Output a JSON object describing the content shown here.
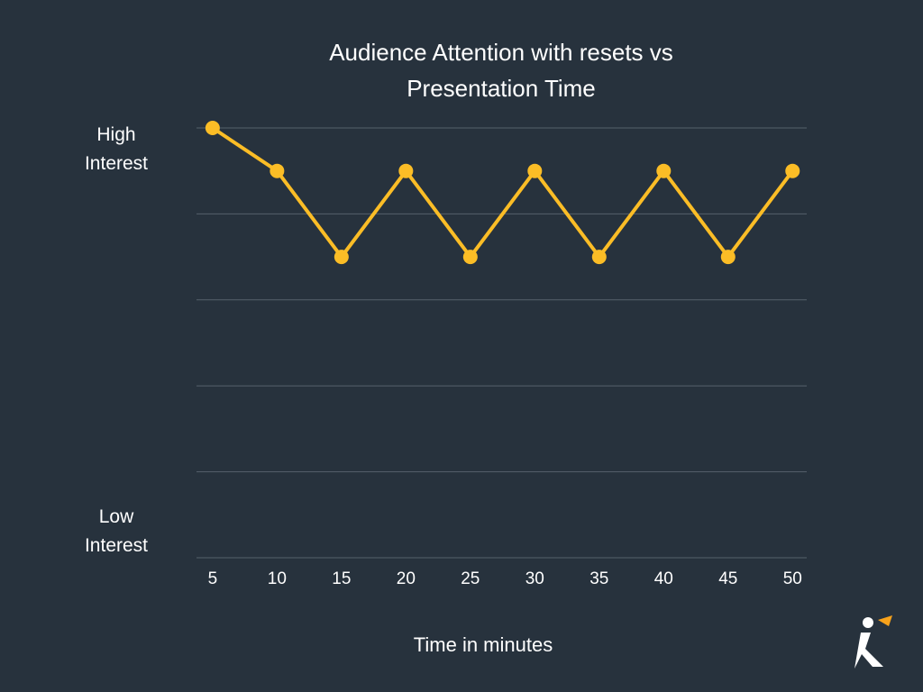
{
  "chart_data": {
    "type": "line",
    "title": "Audience Attention with resets vs Presentation Time",
    "x_label": "Time in minutes",
    "x": [
      5,
      10,
      15,
      20,
      25,
      30,
      35,
      40,
      45,
      50
    ],
    "series": [
      {
        "name": "Attention",
        "color": "#fbbd26",
        "values": [
          5,
          4.5,
          3.5,
          4.5,
          3.5,
          4.5,
          3.5,
          4.5,
          3.5,
          4.5
        ]
      }
    ],
    "xlim": [
      3.75,
      51.1
    ],
    "xticks": [
      5,
      10,
      15,
      20,
      25,
      30,
      35,
      40,
      45,
      50
    ],
    "ylim": [
      0,
      5
    ],
    "yticks": [
      {
        "value": 0,
        "label": "Low Interest"
      },
      {
        "value": 1,
        "label": null
      },
      {
        "value": 2,
        "label": null
      },
      {
        "value": 3,
        "label": null
      },
      {
        "value": 4,
        "label": null
      },
      {
        "value": 5,
        "label": "High Interest"
      }
    ],
    "grid": true
  }
}
